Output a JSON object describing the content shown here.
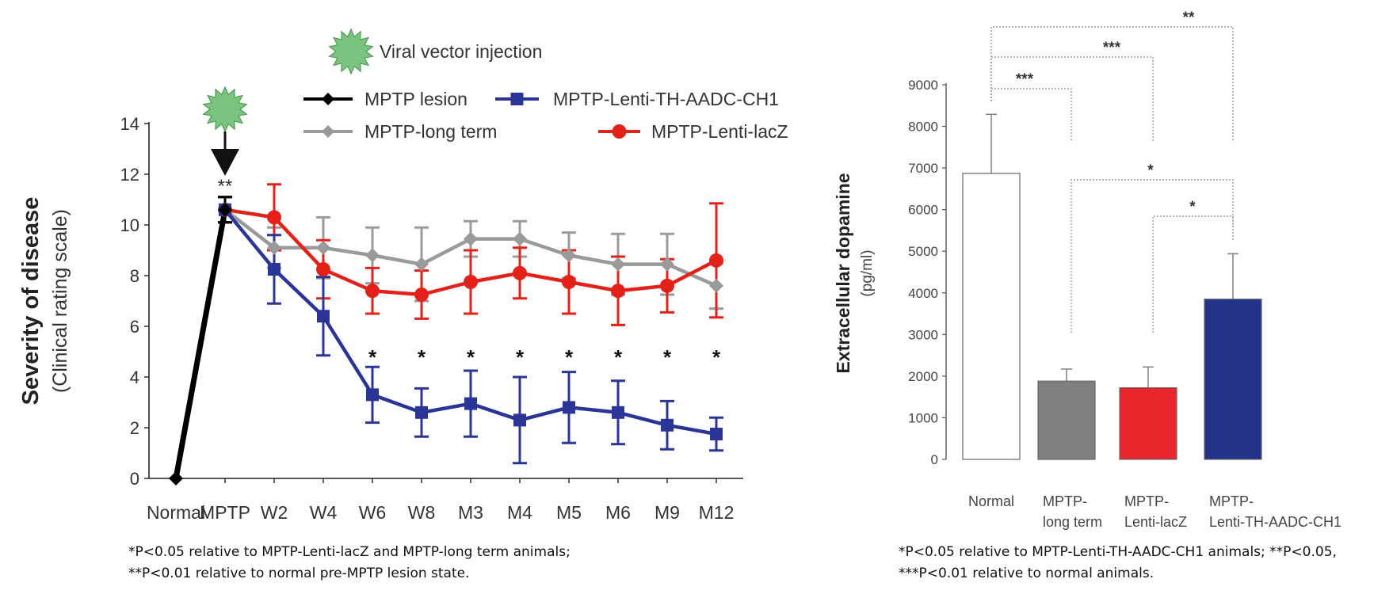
{
  "chart_data": [
    {
      "type": "line",
      "title": "",
      "ylabel": "Severity of disease",
      "ylabel_sub": "(Clinical rating scale)",
      "xlabel": "",
      "categories": [
        "Normal",
        "MPTP",
        "W2",
        "W4",
        "W6",
        "W8",
        "M3",
        "M4",
        "M5",
        "M6",
        "M9",
        "M12"
      ],
      "ylim": [
        0,
        14
      ],
      "yticks": [
        0,
        2,
        4,
        6,
        8,
        10,
        12,
        14
      ],
      "injection_label": "Viral vector injection",
      "injection_significance": "**",
      "series": [
        {
          "name": "MPTP lesion",
          "color": "#000000",
          "marker": "diamond",
          "values": [
            0,
            10.6,
            null,
            null,
            null,
            null,
            null,
            null,
            null,
            null,
            null,
            null
          ],
          "errors": [
            0,
            0.5,
            null,
            null,
            null,
            null,
            null,
            null,
            null,
            null,
            null,
            null
          ]
        },
        {
          "name": "MPTP-long term",
          "color": "#9a9a9a",
          "marker": "diamond",
          "values": [
            null,
            10.6,
            9.1,
            9.1,
            8.8,
            8.45,
            9.45,
            9.45,
            8.8,
            8.45,
            8.45,
            7.6
          ],
          "errors": [
            null,
            0.5,
            0.8,
            1.2,
            1.1,
            1.45,
            0.7,
            0.7,
            0.9,
            1.2,
            1.2,
            0.9
          ]
        },
        {
          "name": "MPTP-Lenti-lacZ",
          "color": "#e32119",
          "marker": "circle",
          "values": [
            null,
            10.6,
            10.3,
            8.25,
            7.4,
            7.25,
            7.75,
            8.1,
            7.75,
            7.4,
            7.6,
            8.6
          ],
          "errors": [
            null,
            0.5,
            1.3,
            1.15,
            0.9,
            0.95,
            1.25,
            1.0,
            1.25,
            1.35,
            1.05,
            2.25
          ]
        },
        {
          "name": "MPTP-Lenti-TH-AADC-CH1",
          "color": "#2b3597",
          "marker": "square",
          "values": [
            null,
            10.6,
            8.25,
            6.4,
            3.3,
            2.6,
            2.95,
            2.3,
            2.8,
            2.6,
            2.1,
            1.75
          ]
        },
        {
          "name": "MPTP-Lenti-TH-AADC-CH1 error",
          "color": "#2b3597",
          "values": [
            null,
            0.5,
            1.35,
            1.55,
            1.1,
            0.95,
            1.3,
            1.7,
            1.4,
            1.25,
            0.95,
            0.65
          ]
        }
      ],
      "significance": {
        "categories": [
          "W6",
          "W8",
          "M3",
          "M4",
          "M5",
          "M6",
          "M9",
          "M12"
        ],
        "mark": "*"
      },
      "legend": [
        {
          "label": "MPTP lesion",
          "marker": "diamond",
          "color": "#000000"
        },
        {
          "label": "MPTP-Lenti-TH-AADC-CH1",
          "marker": "square",
          "color": "#2b3597"
        },
        {
          "label": "MPTP-long term",
          "marker": "diamond",
          "color": "#9a9a9a"
        },
        {
          "label": "MPTP-Lenti-lacZ",
          "marker": "circle",
          "color": "#e32119"
        }
      ]
    },
    {
      "type": "bar",
      "title": "",
      "ylabel": "Extracellular dopamine",
      "ylabel_sub": "(pg/ml)",
      "ylim": [
        0,
        9000
      ],
      "yticks": [
        0,
        1000,
        2000,
        3000,
        4000,
        5000,
        6000,
        7000,
        8000,
        9000
      ],
      "categories": [
        [
          "Normal"
        ],
        [
          "MPTP-",
          "long term"
        ],
        [
          "MPTP-",
          "Lenti-lacZ"
        ],
        [
          "MPTP-",
          "Lenti-TH-AADC-CH1"
        ]
      ],
      "values": [
        6870,
        1880,
        1720,
        3850
      ],
      "errors": [
        1420,
        290,
        500,
        1090
      ],
      "colors": [
        "#ffffff",
        "#808080",
        "#e8262b",
        "#23338a"
      ],
      "comparisons": [
        {
          "from": 0,
          "to": 1,
          "label": "***"
        },
        {
          "from": 0,
          "to": 2,
          "label": "***"
        },
        {
          "from": 0,
          "to": 3,
          "label": "**"
        },
        {
          "from": 1,
          "to": 3,
          "label": "*"
        },
        {
          "from": 2,
          "to": 3,
          "label": "*"
        }
      ]
    }
  ],
  "footnotes": {
    "left": [
      "*P<0.05 relative to MPTP-Lenti-lacZ and MPTP-long term animals;",
      "**P<0.01 relative to normal pre-MPTP lesion state."
    ],
    "right": [
      "*P<0.05 relative to MPTP-Lenti-TH-AADC-CH1 animals; **P<0.05,",
      "***P<0.01 relative to normal animals."
    ]
  }
}
